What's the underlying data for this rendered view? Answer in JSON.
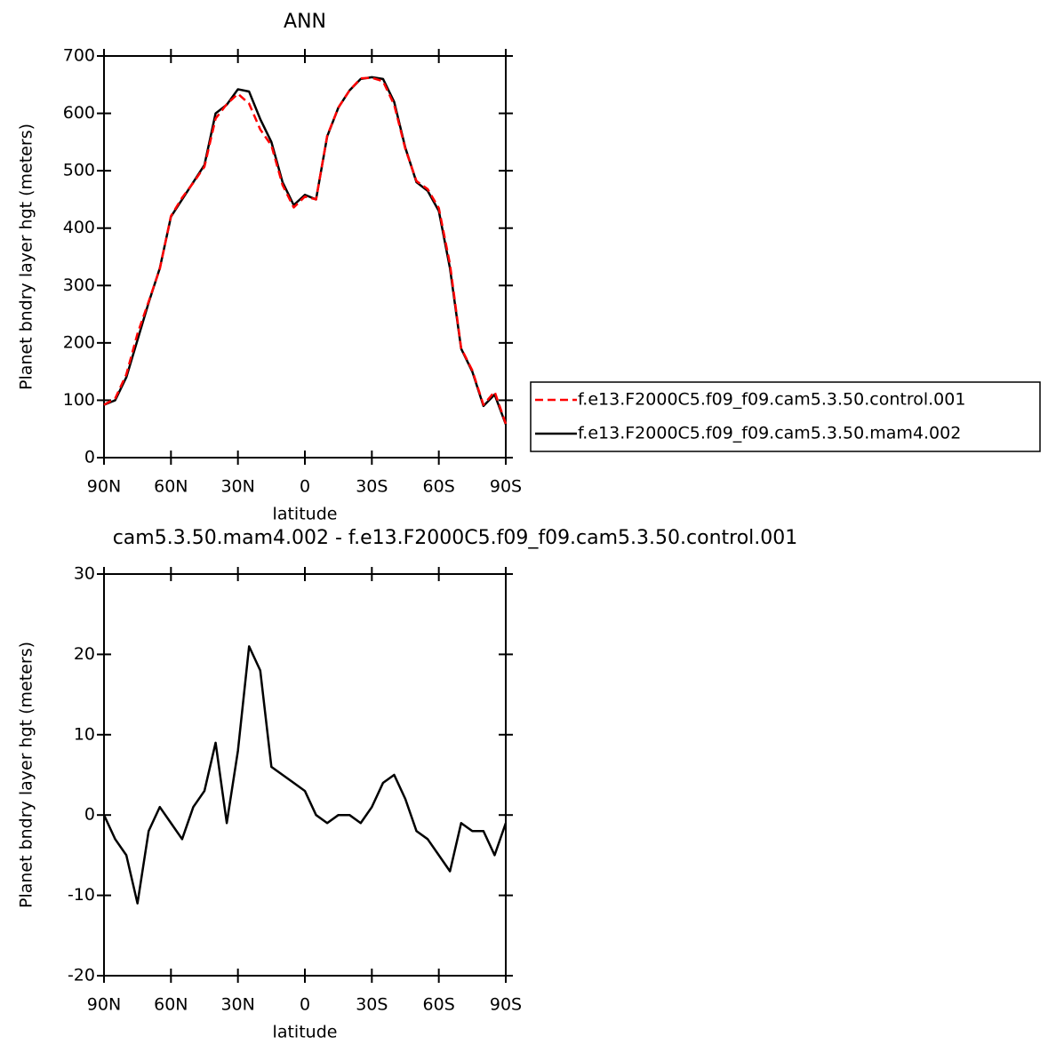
{
  "chart_data": [
    {
      "type": "line",
      "title": "ANN",
      "xlabel": "latitude",
      "ylabel": "Planet bndry layer hgt (meters)",
      "x": [
        90,
        85,
        80,
        75,
        70,
        65,
        60,
        55,
        50,
        45,
        40,
        35,
        30,
        25,
        20,
        15,
        10,
        5,
        0,
        -5,
        -10,
        -15,
        -20,
        -25,
        -30,
        -35,
        -40,
        -45,
        -50,
        -55,
        -60,
        -65,
        -70,
        -75,
        -80,
        -85,
        -90
      ],
      "series": [
        {
          "name": "f.e13.F2000C5.f09_f09.cam5.3.50.control.001",
          "color": "#ff0000",
          "line_style": "dashed",
          "values": [
            92,
            103,
            145,
            216,
            272,
            329,
            421,
            453,
            479,
            507,
            591,
            616,
            634,
            617,
            572,
            544,
            475,
            436,
            455,
            450,
            561,
            610,
            640,
            661,
            662,
            656,
            615,
            538,
            482,
            468,
            435,
            337,
            191,
            152,
            92,
            115,
            59
          ]
        },
        {
          "name": "f.e13.F2000C5.f09_f09.cam5.3.50.mam4.002",
          "color": "#000000",
          "line_style": "solid",
          "values": [
            92,
            100,
            140,
            205,
            270,
            330,
            420,
            450,
            480,
            510,
            600,
            615,
            642,
            638,
            590,
            550,
            480,
            440,
            458,
            450,
            560,
            610,
            640,
            660,
            663,
            660,
            620,
            540,
            480,
            465,
            430,
            330,
            190,
            150,
            90,
            110,
            58
          ]
        }
      ],
      "xlim": [
        90,
        -90
      ],
      "xticks": [
        {
          "value": 90,
          "label": "90N"
        },
        {
          "value": 60,
          "label": "60N"
        },
        {
          "value": 30,
          "label": "30N"
        },
        0,
        {
          "value": -30,
          "label": "30S"
        },
        {
          "value": -60,
          "label": "60S"
        },
        {
          "value": -90,
          "label": "90S"
        }
      ],
      "ylim": [
        0,
        700
      ],
      "yticks": [
        0,
        100,
        200,
        300,
        400,
        500,
        600,
        700
      ],
      "legend": "right"
    },
    {
      "type": "line",
      "title": "cam5.3.50.mam4.002 - f.e13.F2000C5.f09_f09.cam5.3.50.control.001",
      "xlabel": "latitude",
      "ylabel": "Planet bndry layer hgt (meters)",
      "x": [
        90,
        85,
        80,
        75,
        70,
        65,
        60,
        55,
        50,
        45,
        40,
        35,
        30,
        25,
        20,
        15,
        10,
        5,
        0,
        -5,
        -10,
        -15,
        -20,
        -25,
        -30,
        -35,
        -40,
        -45,
        -50,
        -55,
        -60,
        -65,
        -70,
        -75,
        -80,
        -85,
        -90
      ],
      "color": "#000000",
      "values": [
        0,
        -3,
        -5,
        -11,
        -2,
        1,
        -1,
        -3,
        1,
        3,
        9,
        -1,
        8,
        21,
        18,
        6,
        5,
        4,
        3,
        0,
        -1,
        0,
        0,
        -1,
        1,
        4,
        5,
        2,
        -2,
        -3,
        -5,
        -7,
        -1,
        -2,
        -2,
        -5,
        -1
      ],
      "xlim": [
        90,
        -90
      ],
      "xticks": [
        {
          "value": 90,
          "label": "90N"
        },
        {
          "value": 60,
          "label": "60N"
        },
        {
          "value": 30,
          "label": "30N"
        },
        0,
        {
          "value": -30,
          "label": "30S"
        },
        {
          "value": -60,
          "label": "60S"
        },
        {
          "value": -90,
          "label": "90S"
        }
      ],
      "ylim": [
        -20,
        30
      ],
      "yticks": [
        -20,
        -10,
        0,
        10,
        20,
        30
      ]
    }
  ]
}
